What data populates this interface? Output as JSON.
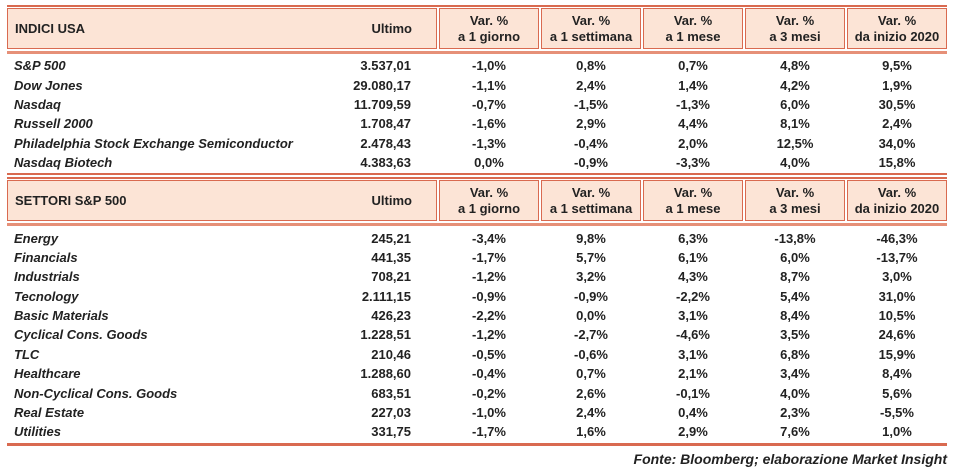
{
  "colors": {
    "accent": "#d96a50",
    "accent_light": "#e69078",
    "header_bg": "#fce4d6",
    "text": "#222222"
  },
  "tables": [
    {
      "header": {
        "title": "INDICI USA",
        "ultimo_label": "Ultimo",
        "cols": [
          {
            "line1": "Var. %",
            "line2": "a 1 giorno"
          },
          {
            "line1": "Var. %",
            "line2": "a 1 settimana"
          },
          {
            "line1": "Var. %",
            "line2": "a 1 mese"
          },
          {
            "line1": "Var. %",
            "line2": "a 3 mesi"
          },
          {
            "line1": "Var. %",
            "line2": "da inizio 2020"
          }
        ]
      },
      "rows": [
        {
          "label": "S&P 500",
          "ultimo": "3.537,01",
          "values": [
            "-1,0%",
            "0,8%",
            "0,7%",
            "4,8%",
            "9,5%"
          ]
        },
        {
          "label": "Dow Jones",
          "ultimo": "29.080,17",
          "values": [
            "-1,1%",
            "2,4%",
            "1,4%",
            "4,2%",
            "1,9%"
          ]
        },
        {
          "label": "Nasdaq",
          "ultimo": "11.709,59",
          "values": [
            "-0,7%",
            "-1,5%",
            "-1,3%",
            "6,0%",
            "30,5%"
          ]
        },
        {
          "label": "Russell 2000",
          "ultimo": "1.708,47",
          "values": [
            "-1,6%",
            "2,9%",
            "4,4%",
            "8,1%",
            "2,4%"
          ]
        },
        {
          "label": "Philadelphia Stock Exchange Semiconductor",
          "ultimo": "2.478,43",
          "values": [
            "-1,3%",
            "-0,4%",
            "2,0%",
            "12,5%",
            "34,0%"
          ]
        },
        {
          "label": "Nasdaq Biotech",
          "ultimo": "4.383,63",
          "values": [
            "0,0%",
            "-0,9%",
            "-3,3%",
            "4,0%",
            "15,8%"
          ]
        }
      ]
    },
    {
      "header": {
        "title": "SETTORI S&P 500",
        "ultimo_label": "Ultimo",
        "cols": [
          {
            "line1": "Var. %",
            "line2": "a 1 giorno"
          },
          {
            "line1": "Var. %",
            "line2": "a 1 settimana"
          },
          {
            "line1": "Var. %",
            "line2": "a 1 mese"
          },
          {
            "line1": "Var. %",
            "line2": "a 3 mesi"
          },
          {
            "line1": "Var. %",
            "line2": "da inizio 2020"
          }
        ]
      },
      "rows": [
        {
          "label": "Energy",
          "ultimo": "245,21",
          "values": [
            "-3,4%",
            "9,8%",
            "6,3%",
            "-13,8%",
            "-46,3%"
          ]
        },
        {
          "label": "Financials",
          "ultimo": "441,35",
          "values": [
            "-1,7%",
            "5,7%",
            "6,1%",
            "6,0%",
            "-13,7%"
          ]
        },
        {
          "label": "Industrials",
          "ultimo": "708,21",
          "values": [
            "-1,2%",
            "3,2%",
            "4,3%",
            "8,7%",
            "3,0%"
          ]
        },
        {
          "label": "Tecnology",
          "ultimo": "2.111,15",
          "values": [
            "-0,9%",
            "-0,9%",
            "-2,2%",
            "5,4%",
            "31,0%"
          ]
        },
        {
          "label": "Basic Materials",
          "ultimo": "426,23",
          "values": [
            "-2,2%",
            "0,0%",
            "3,1%",
            "8,4%",
            "10,5%"
          ]
        },
        {
          "label": "Cyclical Cons. Goods",
          "ultimo": "1.228,51",
          "values": [
            "-1,2%",
            "-2,7%",
            "-4,6%",
            "3,5%",
            "24,6%"
          ]
        },
        {
          "label": "TLC",
          "ultimo": "210,46",
          "values": [
            "-0,5%",
            "-0,6%",
            "3,1%",
            "6,8%",
            "15,9%"
          ]
        },
        {
          "label": "Healthcare",
          "ultimo": "1.288,60",
          "values": [
            "-0,4%",
            "0,7%",
            "2,1%",
            "3,4%",
            "8,4%"
          ]
        },
        {
          "label": "Non-Cyclical Cons. Goods",
          "ultimo": "683,51",
          "values": [
            "-0,2%",
            "2,6%",
            "-0,1%",
            "4,0%",
            "5,6%"
          ]
        },
        {
          "label": "Real Estate",
          "ultimo": "227,03",
          "values": [
            "-1,0%",
            "2,4%",
            "0,4%",
            "2,3%",
            "-5,5%"
          ]
        },
        {
          "label": "Utilities",
          "ultimo": "331,75",
          "values": [
            "-1,7%",
            "1,6%",
            "2,9%",
            "7,6%",
            "1,0%"
          ]
        }
      ]
    }
  ],
  "footer_note": "Fonte: Bloomberg; elaborazione Market Insight"
}
